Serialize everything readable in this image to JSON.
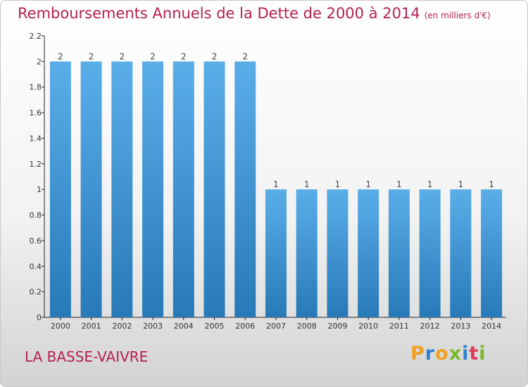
{
  "header": {
    "title": "Remboursements Annuels de la Dette de 2000 à 2014",
    "unit": "(en milliers d'€)"
  },
  "footer": {
    "location": "LA BASSE-VAIVRE",
    "logo": "Proxiti"
  },
  "colors": {
    "title": "#b5204f",
    "bar_top": "#5aaee8",
    "bar_bottom": "#2779b8",
    "logo_letters": [
      "#f0a020",
      "#2f7fd0",
      "#f0a020",
      "#7ab92e",
      "#2f7fd0",
      "#e03a5a",
      "#7ab92e"
    ]
  },
  "chart_data": {
    "type": "bar",
    "title": "Remboursements Annuels de la Dette de 2000 à 2014",
    "subtitle": "(en milliers d'€)",
    "categories": [
      "2000",
      "2001",
      "2002",
      "2003",
      "2004",
      "2005",
      "2006",
      "2007",
      "2008",
      "2009",
      "2010",
      "2011",
      "2012",
      "2013",
      "2014"
    ],
    "values": [
      2,
      2,
      2,
      2,
      2,
      2,
      2,
      1,
      1,
      1,
      1,
      1,
      1,
      1,
      1
    ],
    "data_labels": [
      "2",
      "2",
      "2",
      "2",
      "2",
      "2",
      "2",
      "1",
      "1",
      "1",
      "1",
      "1",
      "1",
      "1",
      "1"
    ],
    "ylim": [
      0,
      2.2
    ],
    "yticks": [
      0,
      0.2,
      0.4,
      0.6,
      0.8,
      1,
      1.2,
      1.4,
      1.6,
      1.8,
      2,
      2.2
    ],
    "ytick_labels": [
      "0",
      "0.2",
      "0.4",
      "0.6",
      "0.8",
      "1",
      "1.2",
      "1.4",
      "1.6",
      "1.8",
      "2",
      "2.2"
    ],
    "grid": false,
    "legend": "none"
  }
}
